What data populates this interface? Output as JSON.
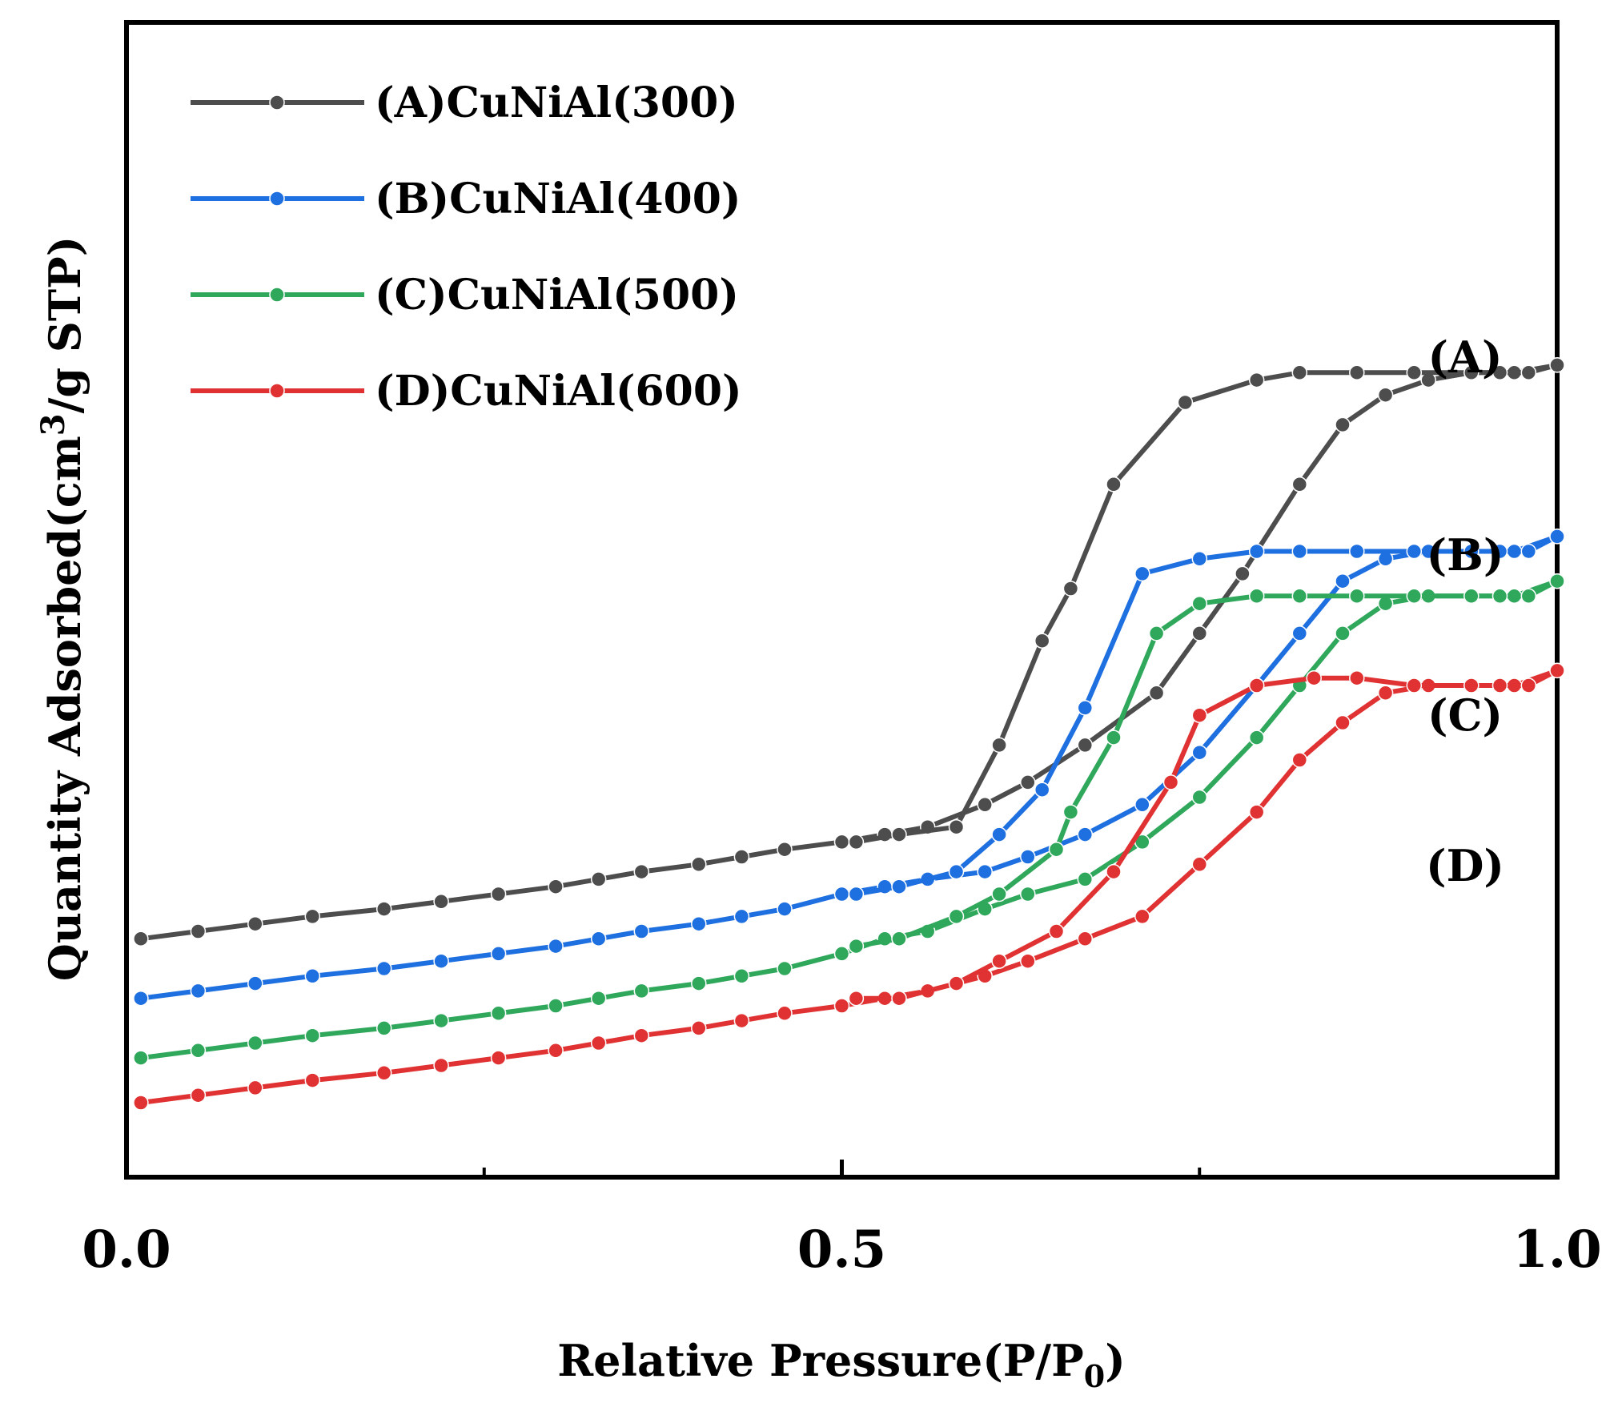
{
  "chart_data": {
    "type": "line",
    "xlabel_main": "Relative Pressure(P/P",
    "xlabel_sub": "0",
    "xlabel_end": ")",
    "ylabel_main": "Quantity Adsorbed(cm",
    "ylabel_sup": "3",
    "ylabel_end": "/g STP)",
    "xlim": [
      0.0,
      1.0
    ],
    "x_tick_labels": [
      "0.0",
      "0.5",
      "1.0"
    ],
    "x_ticks": [
      0.0,
      0.5,
      1.0
    ],
    "x_minor_ticks": [
      0.25,
      0.75
    ],
    "legend_position": "top-left",
    "series": [
      {
        "name": "(A)CuNiAl(300)",
        "curve_label": "(A)",
        "color": "#4d4d4d",
        "adsorption": [
          [
            0.01,
            0.29
          ],
          [
            0.05,
            0.3
          ],
          [
            0.09,
            0.31
          ],
          [
            0.13,
            0.32
          ],
          [
            0.18,
            0.33
          ],
          [
            0.22,
            0.34
          ],
          [
            0.26,
            0.35
          ],
          [
            0.3,
            0.36
          ],
          [
            0.33,
            0.37
          ],
          [
            0.36,
            0.38
          ],
          [
            0.4,
            0.39
          ],
          [
            0.43,
            0.4
          ],
          [
            0.46,
            0.41
          ],
          [
            0.5,
            0.42
          ],
          [
            0.53,
            0.43
          ],
          [
            0.56,
            0.44
          ],
          [
            0.6,
            0.47
          ],
          [
            0.63,
            0.5
          ],
          [
            0.67,
            0.55
          ],
          [
            0.72,
            0.62
          ],
          [
            0.75,
            0.7
          ],
          [
            0.78,
            0.78
          ],
          [
            0.82,
            0.9
          ],
          [
            0.85,
            0.98
          ],
          [
            0.88,
            1.02
          ],
          [
            0.91,
            1.04
          ],
          [
            0.94,
            1.05
          ],
          [
            0.97,
            1.05
          ],
          [
            1.0,
            1.06
          ]
        ],
        "desorption": [
          [
            1.0,
            1.06
          ],
          [
            0.98,
            1.05
          ],
          [
            0.96,
            1.05
          ],
          [
            0.94,
            1.05
          ],
          [
            0.9,
            1.05
          ],
          [
            0.86,
            1.05
          ],
          [
            0.82,
            1.05
          ],
          [
            0.79,
            1.04
          ],
          [
            0.74,
            1.01
          ],
          [
            0.69,
            0.9
          ],
          [
            0.66,
            0.76
          ],
          [
            0.64,
            0.69
          ],
          [
            0.61,
            0.55
          ],
          [
            0.58,
            0.44
          ],
          [
            0.54,
            0.43
          ],
          [
            0.51,
            0.42
          ]
        ]
      },
      {
        "name": "(B)CuNiAl(400)",
        "curve_label": "(B)",
        "color": "#1e6fe0",
        "adsorption": [
          [
            0.01,
            0.21
          ],
          [
            0.05,
            0.22
          ],
          [
            0.09,
            0.23
          ],
          [
            0.13,
            0.24
          ],
          [
            0.18,
            0.25
          ],
          [
            0.22,
            0.26
          ],
          [
            0.26,
            0.27
          ],
          [
            0.3,
            0.28
          ],
          [
            0.33,
            0.29
          ],
          [
            0.36,
            0.3
          ],
          [
            0.4,
            0.31
          ],
          [
            0.43,
            0.32
          ],
          [
            0.46,
            0.33
          ],
          [
            0.5,
            0.35
          ],
          [
            0.53,
            0.36
          ],
          [
            0.56,
            0.37
          ],
          [
            0.6,
            0.38
          ],
          [
            0.63,
            0.4
          ],
          [
            0.67,
            0.43
          ],
          [
            0.71,
            0.47
          ],
          [
            0.75,
            0.54
          ],
          [
            0.79,
            0.63
          ],
          [
            0.82,
            0.7
          ],
          [
            0.85,
            0.77
          ],
          [
            0.88,
            0.8
          ],
          [
            0.91,
            0.81
          ],
          [
            0.94,
            0.81
          ],
          [
            0.97,
            0.81
          ],
          [
            1.0,
            0.83
          ]
        ],
        "desorption": [
          [
            1.0,
            0.83
          ],
          [
            0.98,
            0.81
          ],
          [
            0.96,
            0.81
          ],
          [
            0.94,
            0.81
          ],
          [
            0.9,
            0.81
          ],
          [
            0.86,
            0.81
          ],
          [
            0.82,
            0.81
          ],
          [
            0.79,
            0.81
          ],
          [
            0.75,
            0.8
          ],
          [
            0.71,
            0.78
          ],
          [
            0.67,
            0.6
          ],
          [
            0.64,
            0.49
          ],
          [
            0.61,
            0.43
          ],
          [
            0.58,
            0.38
          ],
          [
            0.54,
            0.36
          ],
          [
            0.51,
            0.35
          ]
        ]
      },
      {
        "name": "(C)CuNiAl(500)",
        "curve_label": "(C)",
        "color": "#2fa85c",
        "adsorption": [
          [
            0.01,
            0.13
          ],
          [
            0.05,
            0.14
          ],
          [
            0.09,
            0.15
          ],
          [
            0.13,
            0.16
          ],
          [
            0.18,
            0.17
          ],
          [
            0.22,
            0.18
          ],
          [
            0.26,
            0.19
          ],
          [
            0.3,
            0.2
          ],
          [
            0.33,
            0.21
          ],
          [
            0.36,
            0.22
          ],
          [
            0.4,
            0.23
          ],
          [
            0.43,
            0.24
          ],
          [
            0.46,
            0.25
          ],
          [
            0.5,
            0.27
          ],
          [
            0.53,
            0.29
          ],
          [
            0.56,
            0.3
          ],
          [
            0.6,
            0.33
          ],
          [
            0.63,
            0.35
          ],
          [
            0.67,
            0.37
          ],
          [
            0.71,
            0.42
          ],
          [
            0.75,
            0.48
          ],
          [
            0.79,
            0.56
          ],
          [
            0.82,
            0.63
          ],
          [
            0.85,
            0.7
          ],
          [
            0.88,
            0.74
          ],
          [
            0.91,
            0.75
          ],
          [
            0.94,
            0.75
          ],
          [
            0.97,
            0.75
          ],
          [
            1.0,
            0.77
          ]
        ],
        "desorption": [
          [
            1.0,
            0.77
          ],
          [
            0.98,
            0.75
          ],
          [
            0.96,
            0.75
          ],
          [
            0.94,
            0.75
          ],
          [
            0.9,
            0.75
          ],
          [
            0.86,
            0.75
          ],
          [
            0.82,
            0.75
          ],
          [
            0.79,
            0.75
          ],
          [
            0.75,
            0.74
          ],
          [
            0.72,
            0.7
          ],
          [
            0.69,
            0.56
          ],
          [
            0.66,
            0.46
          ],
          [
            0.65,
            0.41
          ],
          [
            0.61,
            0.35
          ],
          [
            0.58,
            0.32
          ],
          [
            0.54,
            0.29
          ],
          [
            0.51,
            0.28
          ]
        ]
      },
      {
        "name": "(D)CuNiAl(600)",
        "curve_label": "(D)",
        "color": "#e03232",
        "adsorption": [
          [
            0.01,
            0.07
          ],
          [
            0.05,
            0.08
          ],
          [
            0.09,
            0.09
          ],
          [
            0.13,
            0.1
          ],
          [
            0.18,
            0.11
          ],
          [
            0.22,
            0.12
          ],
          [
            0.26,
            0.13
          ],
          [
            0.3,
            0.14
          ],
          [
            0.33,
            0.15
          ],
          [
            0.36,
            0.16
          ],
          [
            0.4,
            0.17
          ],
          [
            0.43,
            0.18
          ],
          [
            0.46,
            0.19
          ],
          [
            0.5,
            0.2
          ],
          [
            0.53,
            0.21
          ],
          [
            0.56,
            0.22
          ],
          [
            0.6,
            0.24
          ],
          [
            0.63,
            0.26
          ],
          [
            0.67,
            0.29
          ],
          [
            0.71,
            0.32
          ],
          [
            0.75,
            0.39
          ],
          [
            0.79,
            0.46
          ],
          [
            0.82,
            0.53
          ],
          [
            0.85,
            0.58
          ],
          [
            0.88,
            0.62
          ],
          [
            0.91,
            0.63
          ],
          [
            0.94,
            0.63
          ],
          [
            0.97,
            0.63
          ],
          [
            1.0,
            0.65
          ]
        ],
        "desorption": [
          [
            1.0,
            0.65
          ],
          [
            0.98,
            0.63
          ],
          [
            0.96,
            0.63
          ],
          [
            0.94,
            0.63
          ],
          [
            0.9,
            0.63
          ],
          [
            0.86,
            0.64
          ],
          [
            0.83,
            0.64
          ],
          [
            0.79,
            0.63
          ],
          [
            0.75,
            0.59
          ],
          [
            0.73,
            0.5
          ],
          [
            0.69,
            0.38
          ],
          [
            0.65,
            0.3
          ],
          [
            0.61,
            0.26
          ],
          [
            0.58,
            0.23
          ],
          [
            0.54,
            0.21
          ],
          [
            0.51,
            0.21
          ]
        ]
      }
    ]
  }
}
